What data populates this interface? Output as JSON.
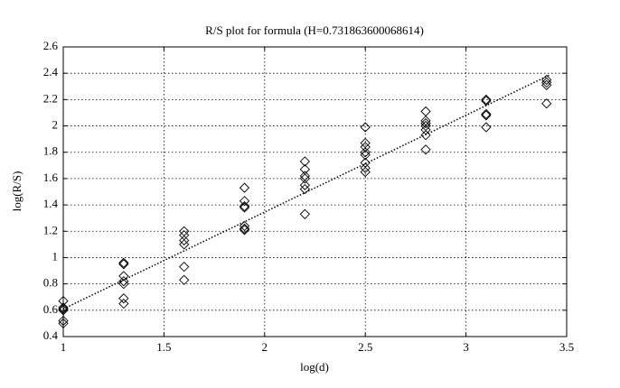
{
  "chart_data": {
    "type": "scatter",
    "title": "R/S plot for formula (H=0.731863600068614)",
    "x_label": "log(d)",
    "y_label": "log(R/S)",
    "x": [
      1,
      1,
      1,
      1,
      1,
      1,
      1.3,
      1.3,
      1.3,
      1.3,
      1.3,
      1.3,
      1.3,
      1.6,
      1.6,
      1.6,
      1.6,
      1.6,
      1.6,
      1.9,
      1.9,
      1.9,
      1.9,
      1.9,
      1.9,
      1.9,
      2.2,
      2.2,
      2.2,
      2.2,
      2.2,
      2.2,
      2.2,
      2.5,
      2.5,
      2.5,
      2.5,
      2.5,
      2.5,
      2.5,
      2.5,
      2.8,
      2.8,
      2.8,
      2.8,
      2.8,
      2.8,
      2.8,
      3.1,
      3.1,
      3.1,
      3.1,
      3.1,
      3.4,
      3.4,
      3.4,
      3.4
    ],
    "values": [
      0.67,
      0.62,
      0.61,
      0.6,
      0.52,
      0.5,
      0.96,
      0.95,
      0.86,
      0.82,
      0.8,
      0.69,
      0.65,
      1.2,
      1.17,
      1.13,
      1.1,
      0.93,
      0.83,
      1.53,
      1.43,
      1.39,
      1.38,
      1.24,
      1.22,
      1.21,
      1.73,
      1.67,
      1.62,
      1.6,
      1.55,
      1.52,
      1.33,
      1.99,
      1.87,
      1.84,
      1.8,
      1.78,
      1.72,
      1.68,
      1.65,
      2.11,
      2.04,
      2.02,
      2.0,
      1.97,
      1.93,
      1.82,
      2.2,
      2.19,
      2.09,
      2.08,
      1.99,
      2.35,
      2.33,
      2.31,
      2.17
    ],
    "color": "#000000",
    "fit_line": {
      "x": [
        1,
        3.42
      ],
      "values": [
        0.61,
        2.39
      ],
      "color": "#000000"
    },
    "xlim": [
      1,
      3.5
    ],
    "xticks": [
      1,
      1.5,
      2,
      2.5,
      3,
      3.5
    ],
    "ylim": [
      0.4,
      2.6
    ],
    "yticks": [
      0.4,
      0.6,
      0.8,
      1,
      1.2,
      1.4,
      1.6,
      1.8,
      2,
      2.2,
      2.4,
      2.6
    ],
    "grid": true
  }
}
